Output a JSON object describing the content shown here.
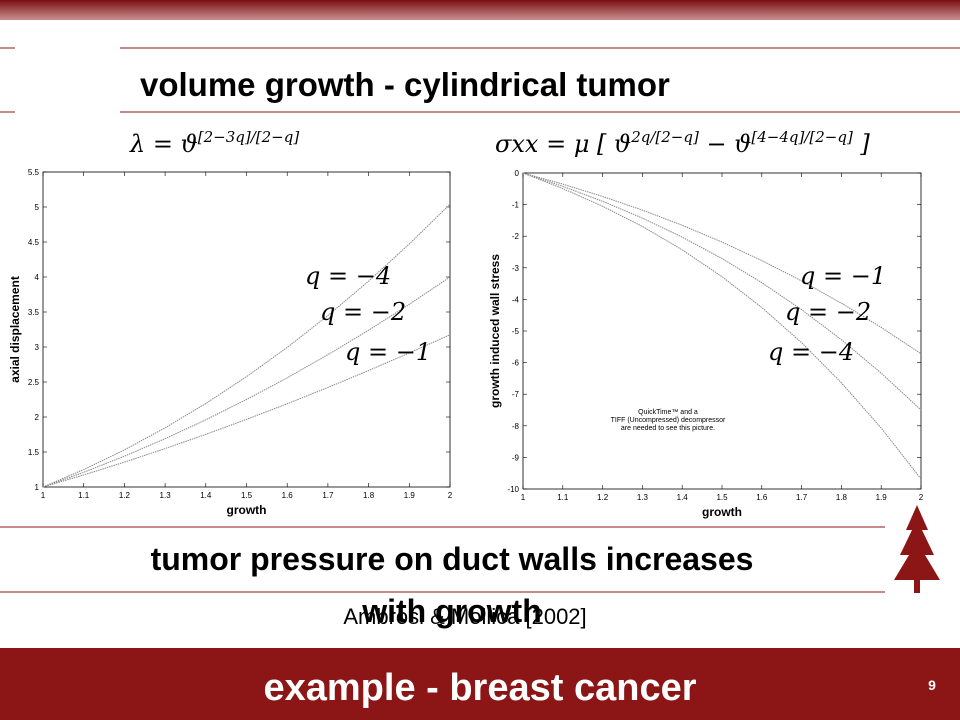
{
  "slide": {
    "title": "volume growth - cylindrical tumor",
    "conclusion": "tumor pressure on duct walls increases with growth",
    "citation": "Ambrosi & Mollica [2002]",
    "footer": "example - breast cancer",
    "page_number": "9",
    "placeholder": [
      "QuickTime™ and a",
      "TIFF (Uncompressed) decompressor",
      "are needed to see this picture."
    ]
  },
  "chart_data": [
    {
      "type": "line",
      "formula": [
        {
          "text": "λ = ϑ"
        },
        {
          "sup": "[2−3q]/[2−q]"
        }
      ],
      "x_label": "growth",
      "y_label": "axial displacement",
      "x": [
        1,
        1.1,
        1.2,
        1.3,
        1.4,
        1.5,
        1.6,
        1.7,
        1.8,
        1.9,
        2
      ],
      "xlim": [
        1,
        2
      ],
      "xticks": [
        1,
        1.1,
        1.2,
        1.3,
        1.4,
        1.5,
        1.6,
        1.7,
        1.8,
        1.9,
        2
      ],
      "ylim": [
        1,
        5.5
      ],
      "yticks": [
        1,
        1.5,
        2,
        2.5,
        3,
        3.5,
        4,
        4.5,
        5,
        5.5
      ],
      "series": [
        {
          "name": "q = −4",
          "color": "#8a8a8a",
          "values": [
            1,
            1.249,
            1.53,
            1.845,
            2.193,
            2.576,
            2.994,
            3.449,
            3.941,
            4.472,
            5.04
          ]
        },
        {
          "name": "q = −2",
          "color": "#8a8a8a",
          "values": [
            1,
            1.21,
            1.44,
            1.69,
            1.96,
            2.25,
            2.56,
            2.89,
            3.24,
            3.61,
            4
          ]
        },
        {
          "name": "q = −1",
          "color": "#8a8a8a",
          "values": [
            1,
            1.172,
            1.355,
            1.549,
            1.752,
            1.966,
            2.189,
            2.422,
            2.664,
            2.915,
            3.175
          ]
        }
      ]
    },
    {
      "type": "line",
      "formula": [
        {
          "text": "σxx = μ [ ϑ"
        },
        {
          "sup": "2q/[2−q]"
        },
        {
          "text": " − ϑ"
        },
        {
          "sup": "[4−4q]/[2−q]"
        },
        {
          "text": " ]"
        }
      ],
      "x_label": "growth",
      "y_label": "growth induced wall stress",
      "x": [
        1,
        1.1,
        1.2,
        1.3,
        1.4,
        1.5,
        1.6,
        1.7,
        1.8,
        1.9,
        2
      ],
      "xlim": [
        1,
        2
      ],
      "xticks": [
        1,
        1.1,
        1.2,
        1.3,
        1.4,
        1.5,
        1.6,
        1.7,
        1.8,
        1.9,
        2
      ],
      "ylim": [
        -10,
        0
      ],
      "yticks": [
        -10,
        -9,
        -8,
        -7,
        -6,
        -5,
        -4,
        -3,
        -2,
        -1,
        0
      ],
      "series": [
        {
          "name": "q = −1",
          "color": "#8a8a8a",
          "values": [
            0,
            -0.351,
            -0.741,
            -1.174,
            -1.654,
            -2.185,
            -2.771,
            -3.414,
            -4.119,
            -4.886,
            -5.72
          ]
        },
        {
          "name": "q = −2",
          "color": "#8a8a8a",
          "values": [
            0,
            -0.422,
            -0.895,
            -1.428,
            -2.03,
            -2.708,
            -3.471,
            -4.325,
            -5.276,
            -6.333,
            -7.5
          ]
        },
        {
          "name": "q = −4",
          "color": "#8a8a8a",
          "values": [
            0,
            -0.493,
            -1.052,
            -1.693,
            -2.431,
            -3.281,
            -4.257,
            -5.37,
            -6.638,
            -8.072,
            -9.682
          ]
        }
      ]
    }
  ]
}
